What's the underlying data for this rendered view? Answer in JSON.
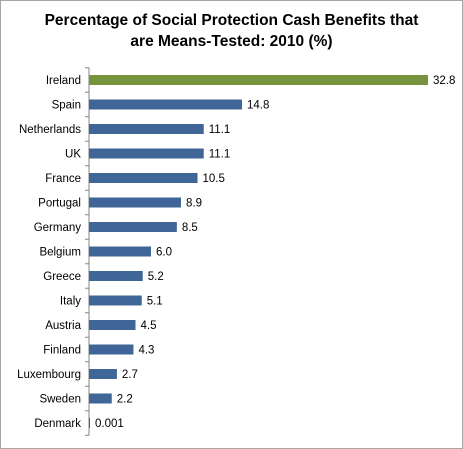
{
  "chart_data": {
    "type": "bar",
    "orientation": "horizontal",
    "title_line1": "Percentage of Social Protection Cash Benefits that",
    "title_line2": "are Means-Tested: 2010 (%)",
    "categories": [
      "Ireland",
      "Spain",
      "Netherlands",
      "UK",
      "France",
      "Portugal",
      "Germany",
      "Belgium",
      "Greece",
      "Italy",
      "Austria",
      "Finland",
      "Luxembourg",
      "Sweden",
      "Denmark"
    ],
    "values": [
      32.8,
      14.8,
      11.1,
      11.1,
      10.5,
      8.9,
      8.5,
      6.0,
      5.2,
      5.1,
      4.5,
      4.3,
      2.7,
      2.2,
      0.001
    ],
    "value_labels": [
      "32.8",
      "14.8",
      "11.1",
      "11.1",
      "10.5",
      "8.9",
      "8.5",
      "6.0",
      "5.2",
      "5.1",
      "4.5",
      "4.3",
      "2.7",
      "2.2",
      "0.001"
    ],
    "highlight_category": "Ireland",
    "colors": {
      "highlight": "#77933c",
      "default": "#3f6696",
      "axis": "#868686"
    },
    "xlim": [
      0,
      32.8
    ],
    "grid": false,
    "legend": "none"
  }
}
